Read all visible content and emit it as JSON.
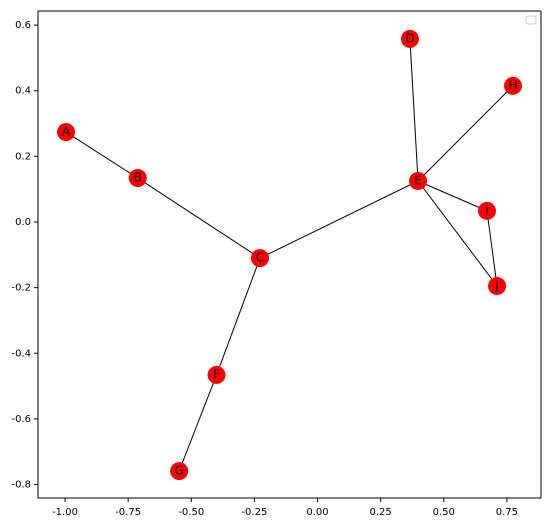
{
  "chart_data": {
    "type": "network",
    "nodes": [
      {
        "label": "A",
        "x": -0.996,
        "y": 0.274
      },
      {
        "label": "B",
        "x": -0.712,
        "y": 0.134
      },
      {
        "label": "C",
        "x": -0.228,
        "y": -0.11
      },
      {
        "label": "D",
        "x": 0.366,
        "y": 0.558
      },
      {
        "label": "E",
        "x": 0.398,
        "y": 0.125
      },
      {
        "label": "F",
        "x": -0.4,
        "y": -0.466
      },
      {
        "label": "G",
        "x": -0.548,
        "y": -0.759
      },
      {
        "label": "H",
        "x": 0.774,
        "y": 0.415
      },
      {
        "label": "I",
        "x": 0.671,
        "y": 0.034
      },
      {
        "label": "J",
        "x": 0.711,
        "y": -0.195
      }
    ],
    "edges": [
      [
        "A",
        "B"
      ],
      [
        "B",
        "C"
      ],
      [
        "C",
        "E"
      ],
      [
        "C",
        "F"
      ],
      [
        "F",
        "G"
      ],
      [
        "E",
        "D"
      ],
      [
        "E",
        "H"
      ],
      [
        "E",
        "I"
      ],
      [
        "E",
        "J"
      ],
      [
        "I",
        "J"
      ]
    ],
    "node_color": "#ff0000",
    "edge_color": "#000000",
    "xlim": [
      -1.107,
      0.885
    ],
    "ylim": [
      -0.841,
      0.643
    ],
    "xticks": [
      {
        "value": -1,
        "label": "-1.00"
      },
      {
        "value": -0.75,
        "label": "-0.75"
      },
      {
        "value": -0.5,
        "label": "-0.50"
      },
      {
        "value": -0.25,
        "label": "-0.25"
      },
      {
        "value": 0,
        "label": "0.00"
      },
      {
        "value": 0.25,
        "label": "0.25"
      },
      {
        "value": 0.5,
        "label": "0.50"
      },
      {
        "value": 0.75,
        "label": "0.75"
      }
    ],
    "yticks": [
      0.6,
      0.4,
      0.2,
      {
        "value": 0,
        "label": "0.0"
      },
      -0.2,
      -0.4,
      -0.6,
      -0.8
    ],
    "legend": "upper right"
  }
}
